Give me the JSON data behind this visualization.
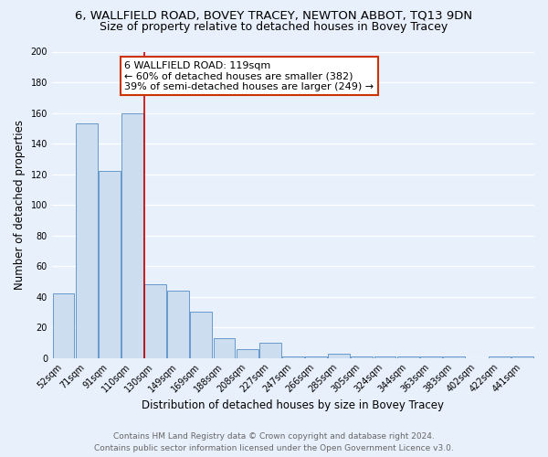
{
  "title": "6, WALLFIELD ROAD, BOVEY TRACEY, NEWTON ABBOT, TQ13 9DN",
  "subtitle": "Size of property relative to detached houses in Bovey Tracey",
  "xlabel": "Distribution of detached houses by size in Bovey Tracey",
  "ylabel": "Number of detached properties",
  "footer_line1": "Contains HM Land Registry data © Crown copyright and database right 2024.",
  "footer_line2": "Contains public sector information licensed under the Open Government Licence v3.0.",
  "bar_labels": [
    "52sqm",
    "71sqm",
    "91sqm",
    "110sqm",
    "130sqm",
    "149sqm",
    "169sqm",
    "188sqm",
    "208sqm",
    "227sqm",
    "247sqm",
    "266sqm",
    "285sqm",
    "305sqm",
    "324sqm",
    "344sqm",
    "363sqm",
    "383sqm",
    "402sqm",
    "422sqm",
    "441sqm"
  ],
  "bar_values": [
    42,
    153,
    122,
    160,
    48,
    44,
    30,
    13,
    6,
    10,
    1,
    1,
    3,
    1,
    1,
    1,
    1,
    1,
    0,
    1,
    1
  ],
  "bar_color": "#ccddf0",
  "bar_edge_color": "#6699cc",
  "ylim": [
    0,
    200
  ],
  "yticks": [
    0,
    20,
    40,
    60,
    80,
    100,
    120,
    140,
    160,
    180,
    200
  ],
  "vline_x": 3.5,
  "vline_color": "#cc0000",
  "annotation_title": "6 WALLFIELD ROAD: 119sqm",
  "annotation_line1": "← 60% of detached houses are smaller (382)",
  "annotation_line2": "39% of semi-detached houses are larger (249) →",
  "annotation_box_color": "#ffffff",
  "annotation_box_edge": "#cc3300",
  "background_color": "#e8f0fb",
  "grid_color": "#ffffff",
  "title_fontsize": 9.5,
  "subtitle_fontsize": 9,
  "axis_label_fontsize": 8.5,
  "tick_fontsize": 7,
  "annotation_fontsize": 8,
  "footer_fontsize": 6.5
}
